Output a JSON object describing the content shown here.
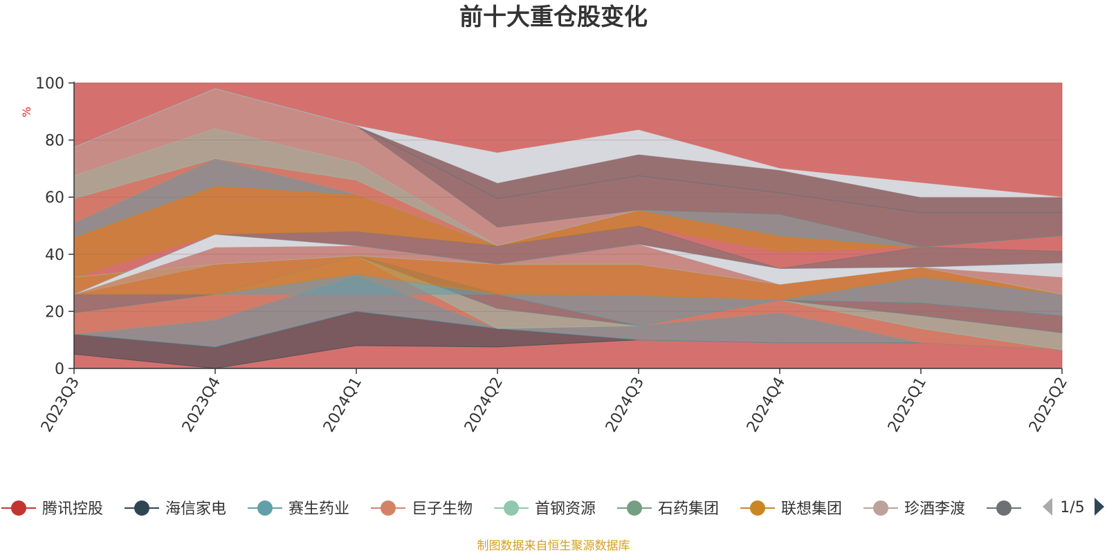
{
  "chart_data": {
    "type": "area",
    "title": "前十大重仓股变化",
    "ylabel": "%",
    "ylim": [
      0,
      100
    ],
    "yticks": [
      0,
      20,
      40,
      60,
      80,
      100
    ],
    "grid": true,
    "legend_position": "bottom",
    "categories": [
      "2023Q3",
      "2023Q4",
      "2024Q1",
      "2024Q2",
      "2024Q3",
      "2024Q4",
      "2025Q1",
      "2025Q2"
    ],
    "series": [
      {
        "name": "腾讯控股",
        "color": "#c23531",
        "values": [
          5,
          0,
          8,
          7.5,
          10,
          9,
          9,
          6.5
        ]
      },
      {
        "name": "海信家电",
        "color": "#2f4554",
        "values": [
          7,
          7.5,
          12,
          6.5,
          0,
          0,
          0,
          0
        ]
      },
      {
        "name": "赛生药业",
        "color": "#61a0a8",
        "values": [
          0,
          9.5,
          12.5,
          0,
          5,
          10.5,
          0,
          0
        ]
      },
      {
        "name": "巨子生物",
        "color": "#d48265",
        "values": [
          7.5,
          9,
          7,
          0,
          0,
          4.5,
          5,
          0
        ]
      },
      {
        "name": "首钢资源",
        "color": "#91c7ae",
        "values": [
          0,
          0,
          6.5,
          7,
          0,
          0,
          4.5,
          6
        ]
      },
      {
        "name": "石药集团",
        "color": "#749f83",
        "values": [
          6.5,
          0,
          0,
          5,
          0,
          0,
          0,
          0
        ]
      },
      {
        "name": "联想集团",
        "color": "#ca8622",
        "values": [
          6,
          10.5,
          0,
          10,
          11,
          5,
          0,
          0
        ]
      },
      {
        "name": "珍酒李渡",
        "color": "#bda29a",
        "values": [
          0,
          6,
          0,
          0,
          0,
          0,
          0,
          0
        ]
      },
      {
        "name": "",
        "color": "#6e7074",
        "values": [
          0,
          0,
          0,
          0,
          0,
          0,
          0,
          0
        ]
      }
    ],
    "layers": [
      {
        "color": "#c23531",
        "lower": [
          0,
          0,
          0,
          0,
          0,
          0,
          0,
          0
        ],
        "upper": [
          100,
          100,
          100,
          100,
          100,
          100,
          100,
          100
        ],
        "opacity": 0.7
      },
      {
        "color": "#2f4554",
        "lower": [
          5,
          0,
          8,
          7.5,
          10,
          9,
          9,
          6.5
        ],
        "upper": [
          12,
          7.5,
          20,
          14,
          10,
          9,
          9,
          6.5
        ],
        "opacity": 0.55
      },
      {
        "color": "#61a0a8",
        "lower": [
          12,
          7.5,
          20,
          14,
          10,
          9,
          9,
          6.5
        ],
        "upper": [
          12,
          17,
          32.5,
          14,
          15,
          19.5,
          9,
          6.5
        ],
        "opacity": 0.55
      },
      {
        "color": "#d48265",
        "lower": [
          12,
          17,
          32.5,
          14,
          15,
          19.5,
          9,
          6.5
        ],
        "upper": [
          19.5,
          26,
          39.5,
          14,
          15,
          24,
          14,
          6.5
        ],
        "opacity": 0.55
      },
      {
        "color": "#91c7ae",
        "lower": [
          19.5,
          26,
          39.5,
          14,
          15,
          24,
          14,
          6.5
        ],
        "upper": [
          19.5,
          26,
          39.5,
          21,
          15,
          24,
          18.5,
          12.5
        ],
        "opacity": 0.55
      },
      {
        "color": "#6e7074",
        "lower": [
          19.5,
          26,
          39.5,
          21,
          15,
          24,
          18.5,
          12.5
        ],
        "upper": [
          26,
          26,
          39.5,
          26,
          15,
          24,
          23,
          18.5
        ],
        "opacity": 0.5
      },
      {
        "color": "#61a0a8",
        "lower": [
          26,
          26,
          26,
          26,
          15,
          24,
          23,
          18.5
        ],
        "upper": [
          26,
          26,
          33,
          26,
          25.5,
          24,
          32,
          26
        ],
        "opacity": 0.55
      },
      {
        "color": "#ca8622",
        "lower": [
          26,
          26,
          33,
          26,
          25.5,
          24,
          32,
          26
        ],
        "upper": [
          32,
          36.5,
          39.5,
          36.5,
          36.5,
          29.5,
          35.5,
          26
        ],
        "opacity": 0.55
      },
      {
        "color": "#91c7ae",
        "lower": [
          32,
          36.5,
          39.5,
          36.5,
          36.5,
          29.5,
          35.5,
          26
        ],
        "upper": [
          32,
          36.5,
          39.5,
          36.5,
          36.5,
          29.5,
          35.5,
          26
        ],
        "opacity": 0.55
      },
      {
        "color": "#bda29a",
        "lower": [
          26,
          36.5,
          39.5,
          36.5,
          36.5,
          29.5,
          35.5,
          26
        ],
        "upper": [
          26,
          42.5,
          43,
          36.5,
          43.5,
          29.5,
          35.5,
          32
        ],
        "opacity": 0.5
      },
      {
        "color": "#d7dde3",
        "lower": [
          26,
          42.5,
          43,
          36.5,
          43.5,
          29.5,
          35.5,
          32
        ],
        "upper": [
          26,
          47,
          43,
          36.5,
          43.5,
          35,
          35.5,
          37
        ],
        "opacity": 0.95
      },
      {
        "color": "#6e7074",
        "lower": [
          26,
          47,
          43,
          36.5,
          43.5,
          35,
          35.5,
          37
        ],
        "upper": [
          26,
          47,
          48,
          43,
          50,
          35,
          42.5,
          41
        ],
        "opacity": 0.5
      },
      {
        "color": "#ca8622",
        "lower": [
          32,
          47,
          48,
          43,
          50,
          41,
          42.5,
          46.5
        ],
        "upper": [
          46,
          64,
          61,
          43,
          55.5,
          46.5,
          42.5,
          46.5
        ],
        "opacity": 0.6
      },
      {
        "color": "#61a0a8",
        "lower": [
          46,
          64,
          61,
          43,
          55.5,
          46.5,
          42.5,
          46.5
        ],
        "upper": [
          51,
          73.5,
          61,
          43,
          55.5,
          54,
          42.5,
          46.5
        ],
        "opacity": 0.55
      },
      {
        "color": "#d48265",
        "lower": [
          51,
          73.5,
          61,
          43,
          55.5,
          54,
          42.5,
          46.5
        ],
        "upper": [
          59.5,
          73.5,
          66,
          43,
          55.5,
          54,
          42.5,
          46.5
        ],
        "opacity": 0.5
      },
      {
        "color": "#91c7ae",
        "lower": [
          59.5,
          73.5,
          66,
          43,
          55.5,
          54,
          42.5,
          46.5
        ],
        "upper": [
          67.5,
          84,
          72,
          43,
          55.5,
          54,
          42.5,
          46.5
        ],
        "opacity": 0.55
      },
      {
        "color": "#bda29a",
        "lower": [
          67.5,
          84,
          72,
          43,
          55.5,
          54,
          42.5,
          46.5
        ],
        "upper": [
          77.5,
          98,
          85,
          49.5,
          55.5,
          54,
          42.5,
          46.5
        ],
        "opacity": 0.55
      },
      {
        "color": "#6e7074",
        "lower": [
          77.5,
          98,
          85,
          49.5,
          55.5,
          54,
          42.5,
          46.5
        ],
        "upper": [
          77.5,
          98,
          85,
          59.5,
          67.5,
          61.5,
          54.5,
          54.5
        ],
        "opacity": 0.55
      },
      {
        "color": "#6e7074",
        "lower": [
          77.5,
          98,
          85,
          59.5,
          67.5,
          61.5,
          54.5,
          54.5
        ],
        "upper": [
          77.5,
          98,
          85,
          65,
          75,
          69.5,
          60,
          60
        ],
        "opacity": 0.6
      },
      {
        "color": "#d7dde3",
        "lower": [
          77.5,
          98,
          85,
          65,
          75,
          69.5,
          60,
          60
        ],
        "upper": [
          77.5,
          98,
          85,
          75.5,
          83.5,
          70,
          65,
          60
        ],
        "opacity": 0.95
      }
    ]
  },
  "legend": {
    "items": [
      {
        "label": "腾讯控股",
        "color": "#c23531"
      },
      {
        "label": "海信家电",
        "color": "#2f4554"
      },
      {
        "label": "赛生药业",
        "color": "#61a0a8"
      },
      {
        "label": "巨子生物",
        "color": "#d48265"
      },
      {
        "label": "首钢资源",
        "color": "#91c7ae"
      },
      {
        "label": "石药集团",
        "color": "#749f83"
      },
      {
        "label": "联想集团",
        "color": "#ca8622"
      },
      {
        "label": "珍酒李渡",
        "color": "#bda29a"
      },
      {
        "label": "",
        "color": "#6e7074"
      }
    ],
    "page_indicator": "1/5",
    "prev_icon": "triangle-left-icon",
    "next_icon": "triangle-right-icon",
    "prev_color": "#aaaaaa",
    "next_color": "#2f4554"
  },
  "footer": {
    "source_note": "制图数据来自恒生聚源数据库"
  }
}
